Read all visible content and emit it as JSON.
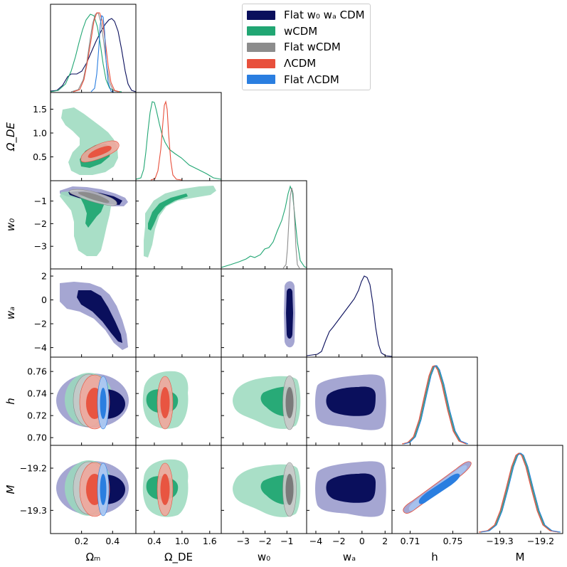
{
  "legend": {
    "placement": "top-right",
    "entries": [
      {
        "label": "Flat w₀ wₐ CDM",
        "color": "#0a0f5c"
      },
      {
        "label": "wCDM",
        "color": "#21a673"
      },
      {
        "label": "Flat wCDM",
        "color": "#8c8c8c"
      },
      {
        "label": "ΛCDM",
        "color": "#e8503c"
      },
      {
        "label": "Flat ΛCDM",
        "color": "#2a7ee0"
      }
    ]
  },
  "chart_data": {
    "type": "corner",
    "parameters": [
      "Ωm",
      "ΩDE",
      "w0",
      "wa",
      "h",
      "M"
    ],
    "axis_labels": {
      "x": [
        "Ωₘ",
        "Ω_DE",
        "w₀",
        "wₐ",
        "h",
        "M"
      ],
      "y": [
        "Ω_DE",
        "w₀",
        "wₐ",
        "h",
        "M"
      ]
    },
    "ranges": {
      "Ωm": [
        0.0,
        0.55
      ],
      "ΩDE": [
        0.0,
        1.85
      ],
      "w0": [
        -4.0,
        -0.1
      ],
      "wa": [
        -4.8,
        2.6
      ],
      "h": [
        0.693,
        0.773
      ],
      "M": [
        -19.355,
        -19.146
      ]
    },
    "ticks": {
      "x": {
        "Ωm": [
          "0.2",
          "0.4"
        ],
        "ΩDE": [
          "0.4",
          "1.0",
          "1.6"
        ],
        "w0": [
          "−3",
          "−2",
          "−1"
        ],
        "wa": [
          "−4",
          "−2",
          "0",
          "2"
        ],
        "h": [
          "0.71",
          "0.75"
        ],
        "M": [
          "−19.3",
          "−19.2"
        ]
      },
      "y": {
        "ΩDE": [
          "0.5",
          "1.0",
          "1.5"
        ],
        "w0": [
          "−3",
          "−2",
          "−1"
        ],
        "wa": [
          "−4",
          "−2",
          "0",
          "2"
        ],
        "h": [
          "0.70",
          "0.72",
          "0.74",
          "0.76"
        ],
        "M": [
          "−19.3",
          "−19.2"
        ]
      }
    },
    "series": [
      {
        "name": "Flat w₀ wₐ CDM",
        "color": "#0a0f5c",
        "marginal_peaks": {
          "Ωm": 0.38,
          "w0": -0.95,
          "wa": 0.3,
          "h": 0.7345,
          "M": -19.244
        }
      },
      {
        "name": "wCDM",
        "color": "#21a673",
        "marginal_peaks": {
          "Ωm": 0.25,
          "ΩDE": 0.4,
          "w0": -0.95,
          "h": 0.7345,
          "M": -19.244
        }
      },
      {
        "name": "Flat wCDM",
        "color": "#8c8c8c",
        "marginal_peaks": {
          "Ωm": 0.29,
          "w0": -1.0,
          "h": 0.7345,
          "M": -19.244
        }
      },
      {
        "name": "ΛCDM",
        "color": "#e8503c",
        "marginal_peaks": {
          "Ωm": 0.28,
          "ΩDE": 0.73,
          "h": 0.7345,
          "M": -19.244
        }
      },
      {
        "name": "Flat ΛCDM",
        "color": "#2a7ee0",
        "marginal_peaks": {
          "Ωm": 0.31,
          "h": 0.735,
          "M": -19.244
        }
      }
    ]
  }
}
